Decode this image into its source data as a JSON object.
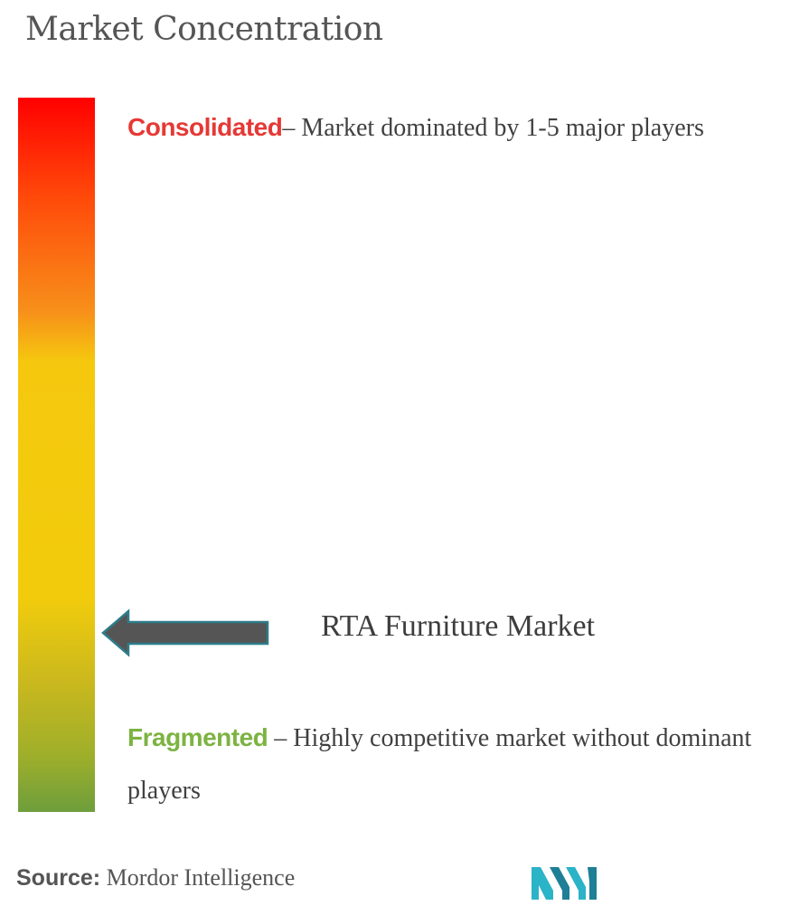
{
  "title": "Market Concentration",
  "colors": {
    "consolidated": "#e53935",
    "fragmented": "#7cb342",
    "gradient_top": "#ff0000",
    "gradient_mid": "#f2cc0c",
    "gradient_bottom": "#6e9e3c",
    "arrow_fill": "#555555",
    "arrow_stroke": "#2e7d8a"
  },
  "consolidated": {
    "label": "Consolidated",
    "text": "– Market dominated by 1-5 major players"
  },
  "fragmented": {
    "label": "Fragmented",
    "text": " – Highly competitive market without dominant players"
  },
  "market": {
    "label": "RTA Furniture Market"
  },
  "source": {
    "key": "Source:",
    "value": " Mordor Intelligence"
  },
  "logo_icon": "mordor-intelligence-logo",
  "chart_data": {
    "type": "gradient-scale",
    "title": "Market Concentration",
    "scale_top": "Consolidated",
    "scale_bottom": "Fragmented",
    "marker": {
      "name": "RTA Furniture Market",
      "position_fraction_from_top": 0.75
    }
  }
}
